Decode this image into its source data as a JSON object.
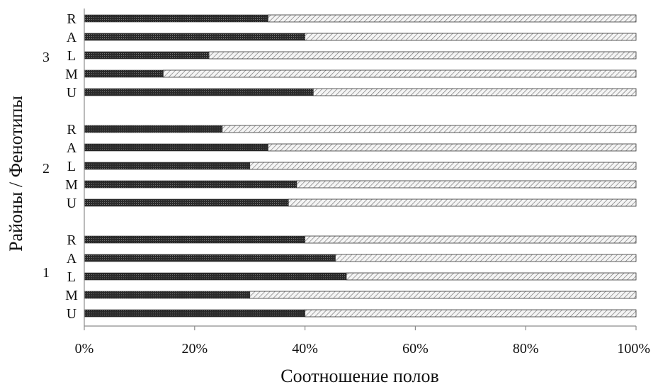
{
  "chart_data": {
    "type": "bar",
    "orientation": "horizontal",
    "stacking": "percent",
    "xlabel": "Соотношение полов",
    "ylabel": "Районы / Фенотипы",
    "xlim": [
      0,
      100
    ],
    "xticks": [
      "0%",
      "20%",
      "40%",
      "60%",
      "80%",
      "100%"
    ],
    "grid": false,
    "legend": "none",
    "colors": {
      "first": "#333333",
      "second": "#e8e8e8",
      "hatch": "#555555",
      "axis": "#8c8c8c"
    },
    "groups": [
      {
        "name": "1",
        "categories": [
          "U",
          "M",
          "L",
          "A",
          "R"
        ],
        "values": [
          40,
          30,
          47.5,
          45.5,
          40
        ]
      },
      {
        "name": "2",
        "categories": [
          "U",
          "M",
          "L",
          "A",
          "R"
        ],
        "values": [
          37,
          38.5,
          30,
          33.3,
          25
        ]
      },
      {
        "name": "3",
        "categories": [
          "U",
          "M",
          "L",
          "A",
          "R"
        ],
        "values": [
          41.5,
          14.3,
          22.6,
          40,
          33.3
        ]
      }
    ]
  }
}
